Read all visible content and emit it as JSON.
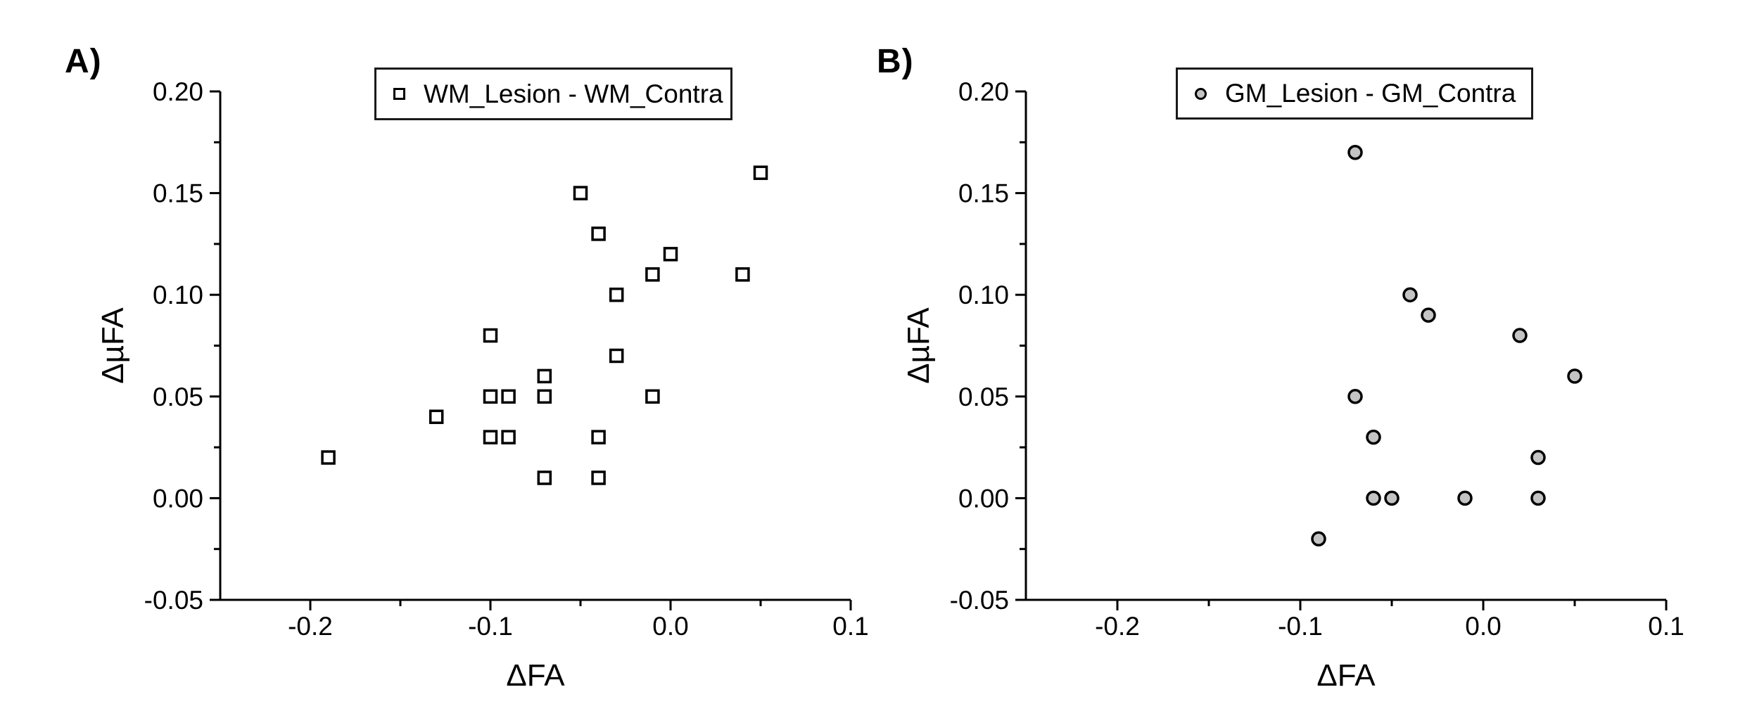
{
  "figure": {
    "background": "#ffffff",
    "axis_color": "#000000",
    "text_color": "#000000"
  },
  "chart_data": [
    {
      "type": "scatter",
      "panel_label": "A)",
      "xlabel": "ΔFA",
      "ylabel": "ΔµFA",
      "xlim": [
        -0.25,
        0.1
      ],
      "ylim": [
        -0.05,
        0.2
      ],
      "grid": false,
      "legend": {
        "position": "top-center",
        "label": "WM_Lesion - WM_Contra",
        "marker": "open-square"
      },
      "x_ticks": {
        "major": [
          {
            "v": -0.2,
            "label": "-0.2"
          },
          {
            "v": -0.1,
            "label": "-0.1"
          },
          {
            "v": 0.0,
            "label": "0.0"
          },
          {
            "v": 0.1,
            "label": "0.1"
          }
        ],
        "minor": [
          -0.15,
          -0.05,
          0.05
        ]
      },
      "y_ticks": {
        "major": [
          {
            "v": 0.2,
            "label": "0.20"
          },
          {
            "v": 0.15,
            "label": "0.15"
          },
          {
            "v": 0.1,
            "label": "0.10"
          },
          {
            "v": 0.05,
            "label": "0.05"
          },
          {
            "v": 0.0,
            "label": "0.00"
          },
          {
            "v": -0.05,
            "label": "-0.05"
          }
        ],
        "minor": [
          0.175,
          0.125,
          0.075,
          0.025,
          -0.025
        ]
      },
      "series": [
        {
          "name": "WM_Lesion - WM_Contra",
          "marker": "square",
          "marker_fill": "#ffffff",
          "marker_stroke": "#000000",
          "points": [
            [
              -0.19,
              0.02
            ],
            [
              -0.13,
              0.04
            ],
            [
              -0.1,
              0.08
            ],
            [
              -0.1,
              0.05
            ],
            [
              -0.1,
              0.03
            ],
            [
              -0.09,
              0.05
            ],
            [
              -0.09,
              0.03
            ],
            [
              -0.07,
              0.06
            ],
            [
              -0.07,
              0.05
            ],
            [
              -0.07,
              0.01
            ],
            [
              -0.05,
              0.15
            ],
            [
              -0.04,
              0.13
            ],
            [
              -0.04,
              0.03
            ],
            [
              -0.04,
              0.01
            ],
            [
              -0.03,
              0.1
            ],
            [
              -0.03,
              0.07
            ],
            [
              -0.01,
              0.11
            ],
            [
              -0.01,
              0.05
            ],
            [
              0.0,
              0.12
            ],
            [
              0.04,
              0.11
            ],
            [
              0.05,
              0.16
            ]
          ]
        }
      ]
    },
    {
      "type": "scatter",
      "panel_label": "B)",
      "xlabel": "ΔFA",
      "ylabel": "ΔµFA",
      "xlim": [
        -0.25,
        0.1
      ],
      "ylim": [
        -0.05,
        0.2
      ],
      "grid": false,
      "legend": {
        "position": "top-center",
        "label": "GM_Lesion - GM_Contra",
        "marker": "filled-circle"
      },
      "x_ticks": {
        "major": [
          {
            "v": -0.2,
            "label": "-0.2"
          },
          {
            "v": -0.1,
            "label": "-0.1"
          },
          {
            "v": 0.0,
            "label": "0.0"
          },
          {
            "v": 0.1,
            "label": "0.1"
          }
        ],
        "minor": [
          -0.15,
          -0.05,
          0.05
        ]
      },
      "y_ticks": {
        "major": [
          {
            "v": 0.2,
            "label": "0.20"
          },
          {
            "v": 0.15,
            "label": "0.15"
          },
          {
            "v": 0.1,
            "label": "0.10"
          },
          {
            "v": 0.05,
            "label": "0.05"
          },
          {
            "v": 0.0,
            "label": "0.00"
          },
          {
            "v": -0.05,
            "label": "-0.05"
          }
        ],
        "minor": [
          0.175,
          0.125,
          0.075,
          0.025,
          -0.025
        ]
      },
      "series": [
        {
          "name": "GM_Lesion - GM_Contra",
          "marker": "circle",
          "marker_fill": "#c4c4c4",
          "marker_stroke": "#000000",
          "points": [
            [
              -0.09,
              -0.02
            ],
            [
              -0.07,
              0.17
            ],
            [
              -0.07,
              0.05
            ],
            [
              -0.06,
              0.03
            ],
            [
              -0.06,
              0.0
            ],
            [
              -0.05,
              0.0
            ],
            [
              -0.04,
              0.1
            ],
            [
              -0.03,
              0.09
            ],
            [
              -0.01,
              0.0
            ],
            [
              0.02,
              0.08
            ],
            [
              0.03,
              0.02
            ],
            [
              0.03,
              0.0
            ],
            [
              0.05,
              0.06
            ]
          ]
        }
      ]
    }
  ]
}
